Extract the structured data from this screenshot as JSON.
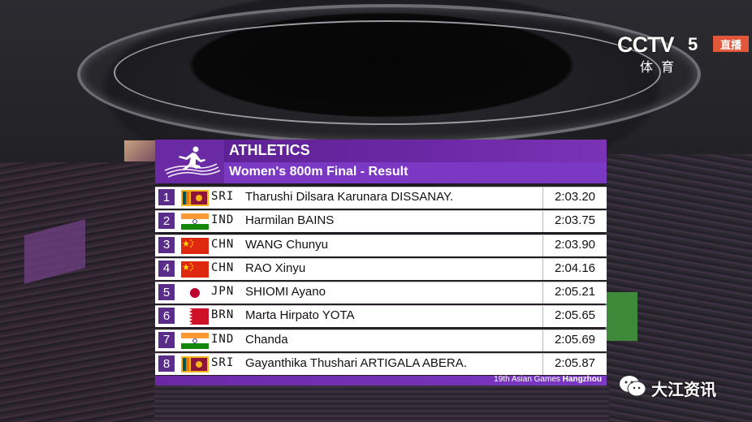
{
  "broadcaster": {
    "logo_text": "CCTV",
    "channel_number": "5",
    "channel_sub": "体育",
    "live_label": "直播"
  },
  "board": {
    "sport": "ATHLETICS",
    "event": "Women's 800m Final - Result",
    "footer_prefix": "19th Asian Games",
    "footer_city": "Hangzhou",
    "results": [
      {
        "rank": "1",
        "code": "SRI",
        "flag": "sri-flag",
        "name": "Tharushi Dilsara Karunara DISSANAY.",
        "time": "2:03.20"
      },
      {
        "rank": "2",
        "code": "IND",
        "flag": "ind-flag",
        "name": "Harmilan BAINS",
        "time": "2:03.75"
      },
      {
        "rank": "3",
        "code": "CHN",
        "flag": "chn-flag",
        "name": "WANG Chunyu",
        "time": "2:03.90"
      },
      {
        "rank": "4",
        "code": "CHN",
        "flag": "chn-flag",
        "name": "RAO Xinyu",
        "time": "2:04.16"
      },
      {
        "rank": "5",
        "code": "JPN",
        "flag": "jpn-flag",
        "name": "SHIOMI Ayano",
        "time": "2:05.21"
      },
      {
        "rank": "6",
        "code": "BRN",
        "flag": "brn-flag",
        "name": "Marta Hirpato YOTA",
        "time": "2:05.65"
      },
      {
        "rank": "7",
        "code": "IND",
        "flag": "ind-flag",
        "name": "Chanda",
        "time": "2:05.69"
      },
      {
        "rank": "8",
        "code": "SRI",
        "flag": "sri-flag",
        "name": "Gayanthika Thushari ARTIGALA ABERA.",
        "time": "2:05.87"
      }
    ]
  },
  "watermark": {
    "text": "大江资讯",
    "icon": "wechat-icon"
  },
  "colors": {
    "board_purple": "#6b28a5",
    "rank_purple": "#5a2d8a",
    "live_red": "#e2563a"
  }
}
